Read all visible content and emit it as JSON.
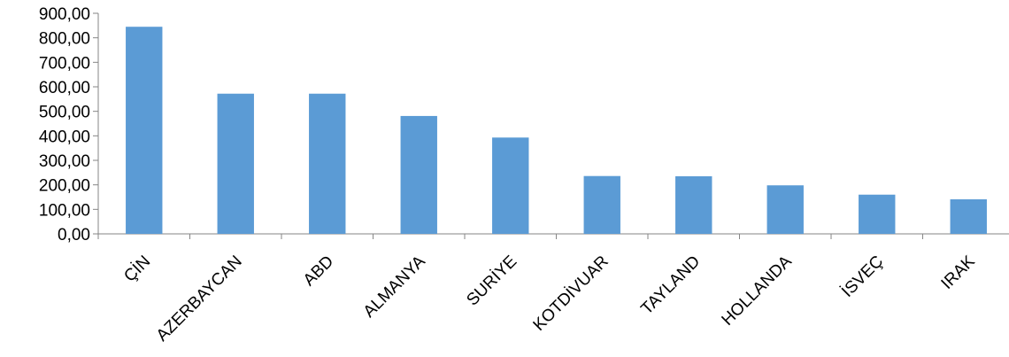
{
  "chart_data": {
    "type": "bar",
    "categories": [
      "ÇİN",
      "AZERBAYCAN",
      "ABD",
      "ALMANYA",
      "SURİYE",
      "KOTDİVUAR",
      "TAYLAND",
      "HOLLANDA",
      "İSVEÇ",
      "IRAK"
    ],
    "values": [
      845,
      572,
      572,
      481,
      393,
      236,
      235,
      198,
      160,
      141
    ],
    "ylim": [
      0,
      900
    ],
    "y_ticks": [
      0,
      100,
      200,
      300,
      400,
      500,
      600,
      700,
      800,
      900
    ],
    "y_tick_labels": [
      "0,00",
      "100,00",
      "200,00",
      "300,00",
      "400,00",
      "500,00",
      "600,00",
      "700,00",
      "800,00",
      "900,00"
    ],
    "title": "",
    "xlabel": "",
    "ylabel": "",
    "grid": false,
    "legend": "none",
    "category_label_rotation": "-45",
    "bar_color": "#5b9bd5",
    "axis_color": "#868686"
  }
}
